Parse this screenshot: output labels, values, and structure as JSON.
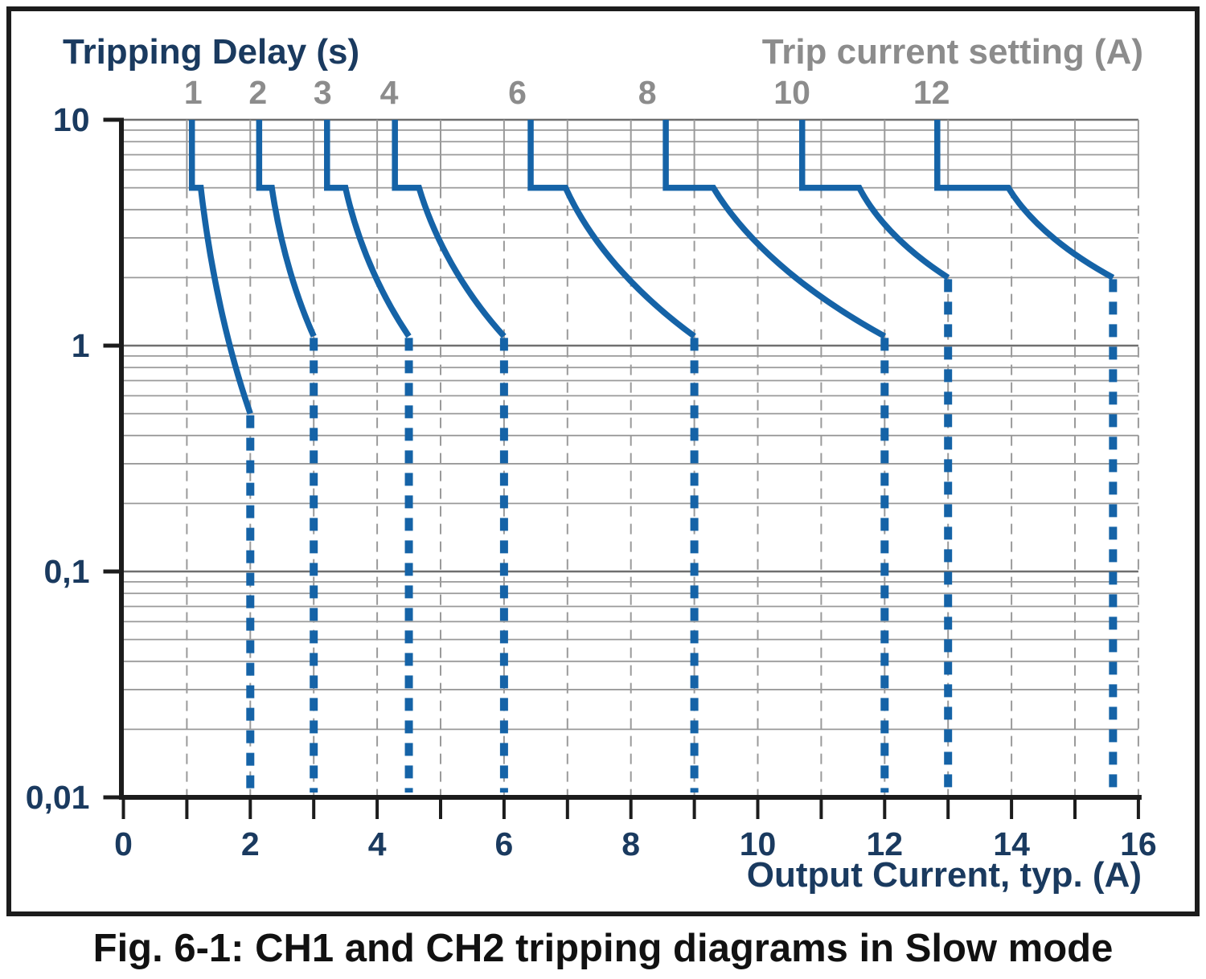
{
  "figure": {
    "caption": "Fig. 6-1: CH1 and CH2 tripping diagrams in Slow mode"
  },
  "chart_data": {
    "type": "line",
    "title": "CH1 and CH2 tripping diagrams in Slow mode",
    "y_axis": {
      "title": "Tripping Delay (s)",
      "scale": "log",
      "min": 0.01,
      "max": 10,
      "ticks": [
        {
          "value": 10,
          "label": "10"
        },
        {
          "value": 1,
          "label": "1"
        },
        {
          "value": 0.1,
          "label": "0,1"
        },
        {
          "value": 0.01,
          "label": "0,01"
        }
      ],
      "minor_gridlines_per_decade": [
        2,
        3,
        4,
        5,
        6,
        7,
        8,
        9
      ]
    },
    "x_axis": {
      "title": "Output Current, typ. (A)",
      "scale": "linear",
      "min": 0,
      "max": 16,
      "minor_tick_step": 1,
      "labeled_ticks": [
        0,
        2,
        4,
        6,
        8,
        10,
        12,
        14,
        16
      ]
    },
    "top_axis": {
      "title": "Trip current setting (A)",
      "labels": [
        {
          "text": "1",
          "x": 1.1
        },
        {
          "text": "2",
          "x": 2.12
        },
        {
          "text": "3",
          "x": 3.14
        },
        {
          "text": "4",
          "x": 4.19
        },
        {
          "text": "6",
          "x": 6.21
        },
        {
          "text": "8",
          "x": 8.26
        },
        {
          "text": "10",
          "x": 10.54
        },
        {
          "text": "12",
          "x": 12.74
        }
      ]
    },
    "series": [
      {
        "trip_setting": 1,
        "vertical_x": 1.08,
        "plateau_time": 5,
        "knee_x": 1.22,
        "solid_end": {
          "x": 2.0,
          "t": 0.5
        },
        "dashed_x": 2.0,
        "dashed_bottom_t": 0.0105
      },
      {
        "trip_setting": 2,
        "vertical_x": 2.14,
        "plateau_time": 5,
        "knee_x": 2.34,
        "solid_end": {
          "x": 3.0,
          "t": 1.1
        },
        "dashed_x": 3.0,
        "dashed_bottom_t": 0.0105
      },
      {
        "trip_setting": 3,
        "vertical_x": 3.21,
        "plateau_time": 5,
        "knee_x": 3.5,
        "solid_end": {
          "x": 4.5,
          "t": 1.1
        },
        "dashed_x": 4.5,
        "dashed_bottom_t": 0.0105
      },
      {
        "trip_setting": 4,
        "vertical_x": 4.28,
        "plateau_time": 5,
        "knee_x": 4.66,
        "solid_end": {
          "x": 6.0,
          "t": 1.1
        },
        "dashed_x": 6.0,
        "dashed_bottom_t": 0.0105
      },
      {
        "trip_setting": 6,
        "vertical_x": 6.42,
        "plateau_time": 5,
        "knee_x": 6.97,
        "solid_end": {
          "x": 9.0,
          "t": 1.1
        },
        "dashed_x": 9.0,
        "dashed_bottom_t": 0.0105
      },
      {
        "trip_setting": 8,
        "vertical_x": 8.55,
        "plateau_time": 5,
        "knee_x": 9.3,
        "solid_end": {
          "x": 12.0,
          "t": 1.1
        },
        "dashed_x": 12.0,
        "dashed_bottom_t": 0.0105
      },
      {
        "trip_setting": 10,
        "vertical_x": 10.7,
        "plateau_time": 5,
        "knee_x": 11.6,
        "solid_end": {
          "x": 13.0,
          "t": 2.0
        },
        "dashed_x": 13.0,
        "dashed_bottom_t": 0.0105
      },
      {
        "trip_setting": 12,
        "vertical_x": 12.83,
        "plateau_time": 5,
        "knee_x": 13.95,
        "solid_end": {
          "x": 15.6,
          "t": 2.0
        },
        "dashed_x": 15.6,
        "dashed_bottom_t": 0.0105
      }
    ],
    "style": {
      "curve_color": "#1563a7",
      "navy_text": "#1a3a5f",
      "gray_text": "#8c8c8c",
      "grid_minor": "#9a9a9a",
      "grid_major": "#6f6f6f",
      "axis_black": "#1c1c1c"
    },
    "legend_position": "none",
    "grid": "on"
  }
}
